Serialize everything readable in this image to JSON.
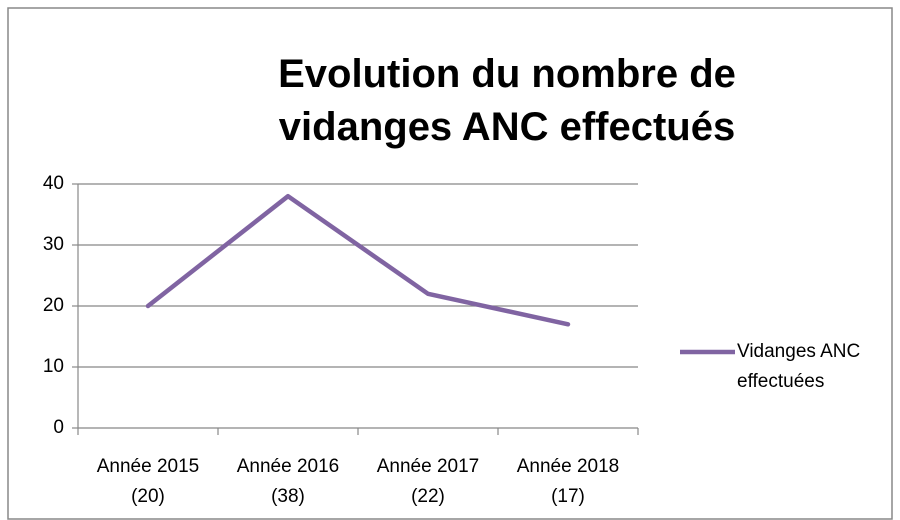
{
  "chart_data": {
    "type": "line",
    "title": "Evolution du nombre de vidanges ANC effectués",
    "categories": [
      "Année 2015 (20)",
      "Année 2016 (38)",
      "Année 2017 (22)",
      "Année 2018 (17)"
    ],
    "series": [
      {
        "name": "Vidanges ANC effectuées",
        "color": "#8064a2",
        "values": [
          20,
          38,
          22,
          17
        ]
      }
    ],
    "ylim": [
      0,
      40
    ],
    "yticks": [
      0,
      10,
      20,
      30,
      40
    ],
    "grid": true,
    "legend": "right"
  }
}
